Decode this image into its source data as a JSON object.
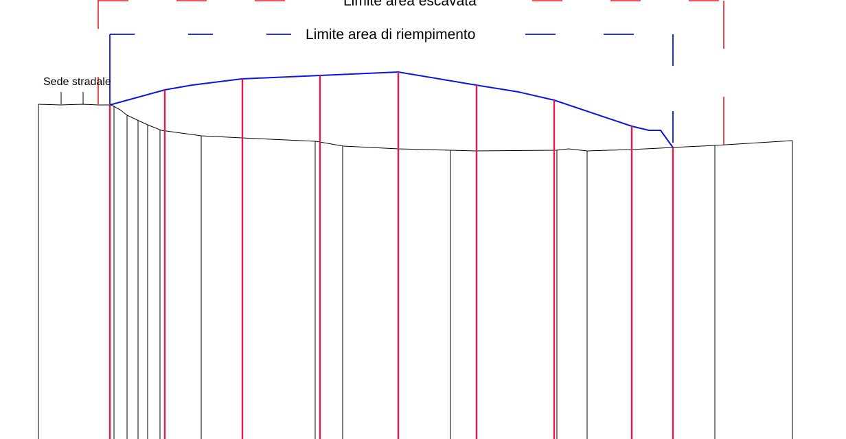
{
  "diagram": {
    "labels": {
      "excavation_limit": "Limite area escavata",
      "fill_limit": "Limite area di riempimento",
      "road": "Sede stradale"
    },
    "colors": {
      "excavation_limit": "#ee1c25",
      "fill_limit": "#0a14e6",
      "ground": "#000000",
      "section_marker": "#e8174e",
      "background": "#ffffff"
    }
  }
}
